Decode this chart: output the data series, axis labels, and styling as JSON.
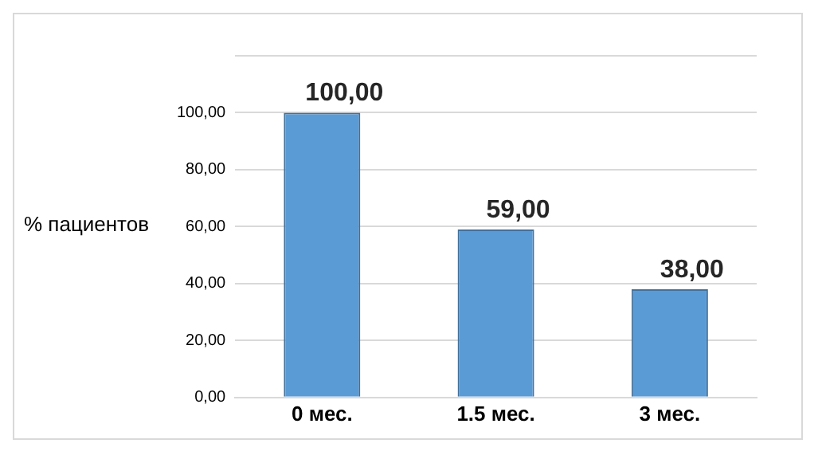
{
  "chart_data": {
    "type": "bar",
    "ylabel": "% пациентов",
    "categories": [
      "0 мес.",
      "1.5 мес.",
      "3 мес."
    ],
    "values": [
      100,
      59,
      38
    ],
    "color": "#5b9bd5",
    "value_labels": [
      "100,00",
      "59,00",
      "38,00"
    ],
    "ylim": [
      0,
      120
    ],
    "yticks": [
      {
        "value": 0,
        "label": "0,00"
      },
      {
        "value": 20,
        "label": "20,00"
      },
      {
        "value": 40,
        "label": "40,00"
      },
      {
        "value": 60,
        "label": "60,00"
      },
      {
        "value": 80,
        "label": "80,00"
      },
      {
        "value": 100,
        "label": "100,00"
      },
      {
        "value": 120,
        "label": null
      }
    ],
    "grid": "y",
    "legend": false
  }
}
